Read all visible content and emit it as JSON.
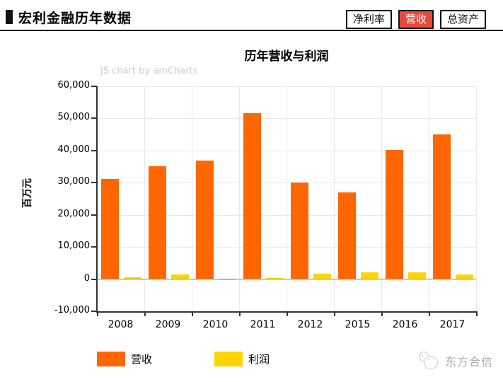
{
  "header": {
    "title": "宏利金融历年数据",
    "buttons": [
      {
        "label": "净利率",
        "active": false
      },
      {
        "label": "营收",
        "active": true
      },
      {
        "label": "总资产",
        "active": false
      }
    ],
    "active_color": "#e64a3b"
  },
  "chart_data": {
    "type": "bar",
    "title": "历年营收与利润",
    "watermark": "JS chart by amCharts",
    "ylabel": "百万元",
    "xlabel": "",
    "categories": [
      "2008",
      "2009",
      "2010",
      "2011",
      "2012",
      "2015",
      "2016",
      "2017"
    ],
    "series": [
      {
        "name": "营收",
        "color": "#FF6600",
        "values": [
          31100,
          35200,
          36800,
          51600,
          30000,
          26900,
          40200,
          45100
        ]
      },
      {
        "name": "利润",
        "color": "#FFD400",
        "values": [
          500,
          1400,
          -400,
          300,
          1600,
          2000,
          2200,
          1500
        ]
      }
    ],
    "ylim": [
      -10000,
      60000
    ],
    "yticks": [
      60000,
      50000,
      40000,
      30000,
      20000,
      10000,
      0,
      -10000
    ],
    "grid": true,
    "legend_position": "bottom",
    "colors": {
      "grid": "#e8e8e8",
      "zero_line": "#999999",
      "axis": "#333333",
      "watermark_text": "#cccccc"
    }
  },
  "footer": {
    "brand": "东方合信"
  }
}
